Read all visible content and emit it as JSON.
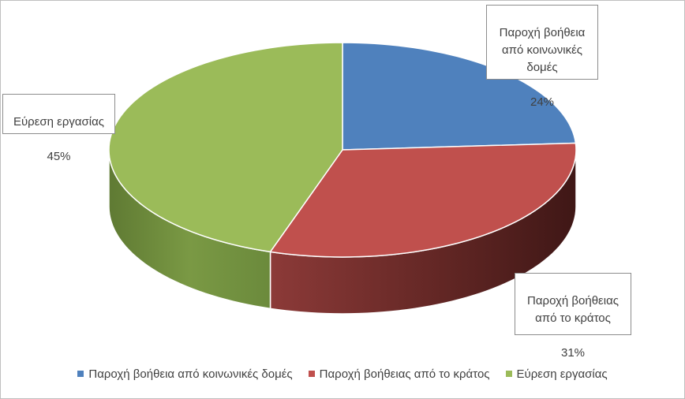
{
  "chart_data": {
    "type": "pie",
    "variant": "3d",
    "title": "",
    "slices": [
      {
        "label": "Παροχή βοήθεια από κοινωνικές δομές",
        "callout": "Παροχή βοήθεια\nαπό κοινωνικές\nδομές",
        "value": 24,
        "value_label": "24%",
        "color": "#4f81bd"
      },
      {
        "label": "Παροχή βοήθειας από το κράτος",
        "callout": "Παροχή βοήθειας\nαπό το κράτος",
        "value": 31,
        "value_label": "31%",
        "color": "#c0504d"
      },
      {
        "label": "Εύρεση εργασίας",
        "callout": "Εύρεση εργασίας",
        "value": 45,
        "value_label": "45%",
        "color": "#9bbb59"
      }
    ],
    "legend_position": "bottom"
  }
}
